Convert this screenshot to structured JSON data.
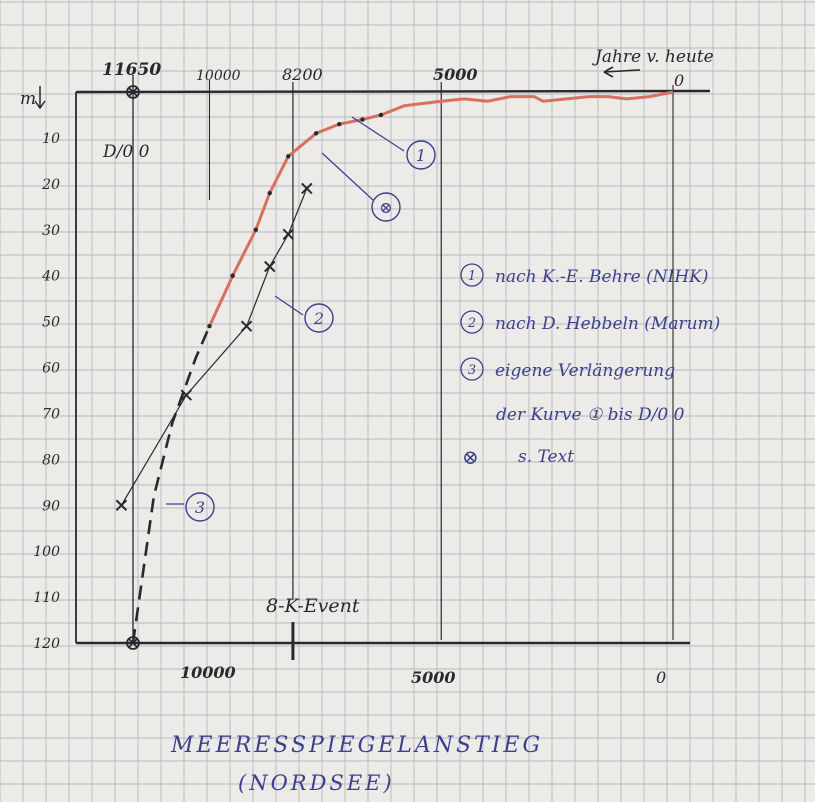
{
  "chart_data": {
    "type": "line",
    "title": "MEERESSPIEGELANSTIEG",
    "subtitle": "(NORDSEE)",
    "top_axis_label": "Jahre v. heute",
    "y_unit": "m",
    "top_ticks": [
      "11650",
      "10000",
      "8200",
      "5000",
      "0"
    ],
    "bottom_ticks": [
      "10000",
      "5000",
      "0"
    ],
    "y_ticks": [
      "10",
      "20",
      "30",
      "40",
      "50",
      "60",
      "70",
      "80",
      "90",
      "100",
      "110",
      "120"
    ],
    "x_range": [
      12000,
      0
    ],
    "y_range": [
      0,
      120
    ],
    "d00_label": "D/0 0",
    "event_label": "8-K-Event",
    "event_x": 8200,
    "series": [
      {
        "id": "1",
        "style": "solid-red",
        "points": [
          [
            10000,
            51
          ],
          [
            9500,
            40
          ],
          [
            9000,
            30
          ],
          [
            8700,
            22
          ],
          [
            8300,
            14
          ],
          [
            7700,
            9
          ],
          [
            7200,
            7
          ],
          [
            6700,
            6
          ],
          [
            6300,
            5
          ],
          [
            5800,
            3
          ],
          [
            5000,
            2
          ],
          [
            4500,
            1.5
          ],
          [
            4000,
            2
          ],
          [
            3500,
            1
          ],
          [
            3000,
            1
          ],
          [
            2800,
            2
          ],
          [
            2300,
            1.5
          ],
          [
            1800,
            1
          ],
          [
            1400,
            1
          ],
          [
            1000,
            1.5
          ],
          [
            500,
            1
          ],
          [
            0,
            0
          ]
        ]
      },
      {
        "id": "2",
        "style": "crosses",
        "points": [
          [
            11900,
            90
          ],
          [
            10500,
            66
          ],
          [
            9200,
            51
          ],
          [
            8700,
            38
          ],
          [
            8300,
            31
          ],
          [
            7900,
            21
          ]
        ]
      },
      {
        "id": "3",
        "style": "dashed",
        "points": [
          [
            11650,
            120
          ],
          [
            11200,
            88
          ],
          [
            10800,
            72
          ],
          [
            10300,
            58
          ],
          [
            10000,
            51
          ]
        ]
      }
    ],
    "special_points": [
      [
        11650,
        120
      ]
    ],
    "legend": [
      {
        "marker": "1",
        "text": "nach K.-E. Behre (NIHK)"
      },
      {
        "marker": "2",
        "text": "nach D. Hebbeln (Marum)"
      },
      {
        "marker": "3",
        "text": "eigene Verlängerung"
      },
      {
        "marker": "",
        "text": "der Kurve ① bis D/0 0"
      },
      {
        "marker": "⊗",
        "text": "s. Text"
      }
    ],
    "curve_labels": [
      {
        "marker": "1"
      },
      {
        "marker": "⊗"
      },
      {
        "marker": "2"
      },
      {
        "marker": "3"
      }
    ]
  },
  "colors": {
    "paper": "#ecebe7",
    "grid": "#b4b8bf",
    "ink": "#27292d",
    "blue_ink": "#3c3f8c",
    "red": "#d9705f"
  }
}
